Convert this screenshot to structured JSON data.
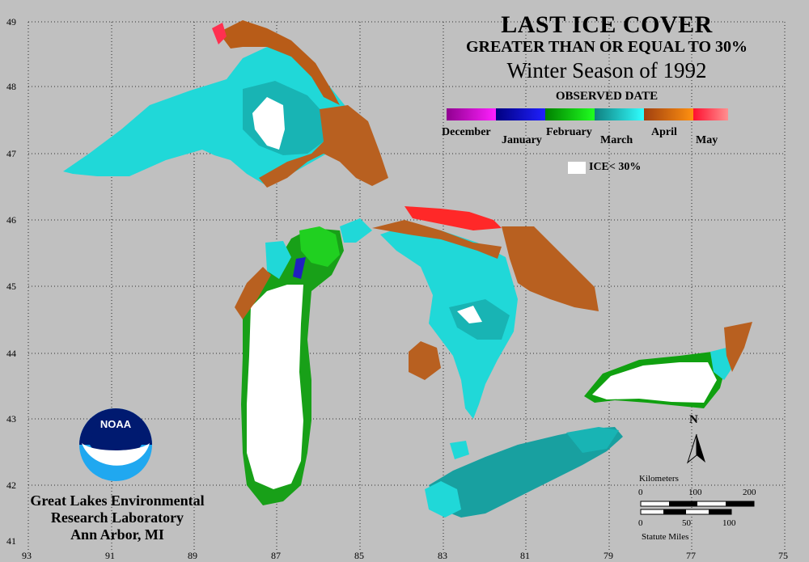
{
  "title": {
    "line1": "LAST ICE COVER",
    "line2": "GREATER THAN OR EQUAL TO 30%",
    "line3": "Winter Season of 1992",
    "legend_heading": "OBSERVED DATE"
  },
  "legend": {
    "months": [
      {
        "label": "December",
        "color": "#c000c0"
      },
      {
        "label": "January",
        "color": "#1010c8"
      },
      {
        "label": "February",
        "color": "#10c010"
      },
      {
        "label": "March",
        "color": "#20d0d0"
      },
      {
        "label": "April",
        "color": "#c86010"
      },
      {
        "label": "May",
        "color": "#ff2020"
      }
    ],
    "ice_label": "ICE< 30%",
    "ice_color": "#ffffff"
  },
  "axes": {
    "lon_ticks": [
      "93",
      "91",
      "89",
      "87",
      "85",
      "83",
      "81",
      "79",
      "77",
      "75"
    ],
    "lat_ticks": [
      "49",
      "48",
      "47",
      "46",
      "45",
      "44",
      "43",
      "42",
      "41"
    ]
  },
  "credit": {
    "line1": "Great Lakes Environmental",
    "line2": "Research Laboratory",
    "line3": "Ann Arbor, MI",
    "logo_text": "NOAA"
  },
  "compass": {
    "label": "N"
  },
  "scalebar": {
    "km_title": "Kilometers",
    "km_ticks": [
      "0",
      "100",
      "200"
    ],
    "mi_title": "Statute Miles",
    "mi_ticks": [
      "0",
      "50",
      "100"
    ]
  },
  "colors": {
    "background": "#c0c0c0",
    "land_lake_outline": "#000000"
  }
}
